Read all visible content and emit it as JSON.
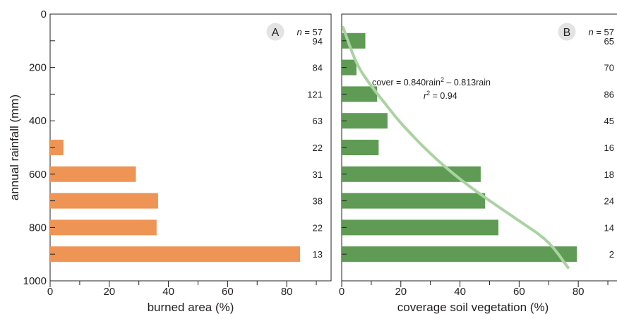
{
  "colors": {
    "left_bar": "#ee9455",
    "right_bar": "#5f9b55",
    "fit_curve": "#a9d3a0",
    "axis": "#231f20",
    "badge": "#e3e3e3"
  },
  "shared_y": {
    "label": "annual rainfall (mm)",
    "ticks": [
      0,
      200,
      400,
      600,
      800,
      1000
    ],
    "range": [
      0,
      1000
    ]
  },
  "chart_data": [
    {
      "type": "bar",
      "orientation": "horizontal",
      "panel": "A",
      "categories_mm": [
        100,
        200,
        300,
        400,
        500,
        600,
        700,
        800,
        900
      ],
      "values": [
        0,
        0,
        0,
        0,
        4.5,
        29,
        36.5,
        36,
        84.5
      ],
      "n_header": "n = 57",
      "n_values": [
        "94",
        "84",
        "121",
        "63",
        "22",
        "31",
        "38",
        "22",
        "13"
      ],
      "xlabel": "burned area (%)",
      "ylabel": "annual rainfall (mm)",
      "xlim": [
        0,
        95
      ],
      "ylim": [
        0,
        1000
      ],
      "x_ticks": [
        0,
        20,
        40,
        60,
        80
      ],
      "y_ticks": [
        0,
        200,
        400,
        600,
        800,
        1000
      ],
      "y_inverted": true
    },
    {
      "type": "bar",
      "orientation": "horizontal",
      "panel": "B",
      "categories_mm": [
        100,
        200,
        300,
        400,
        500,
        600,
        700,
        800,
        900
      ],
      "values": [
        8,
        5,
        12,
        15.5,
        12.5,
        47,
        48.5,
        53,
        79.5
      ],
      "n_header": "n = 57",
      "n_values": [
        "65",
        "70",
        "86",
        "45",
        "16",
        "18",
        "24",
        "14",
        "2"
      ],
      "xlabel": "coverage soil vegetation (%)",
      "xlim": [
        0,
        95
      ],
      "ylim": [
        0,
        1000
      ],
      "x_ticks": [
        0,
        20,
        40,
        60,
        80
      ],
      "y_inverted": true,
      "fit": {
        "equation_prefix": "cover = 0.840rain",
        "equation_sup": "2",
        "equation_suffix": " – 0.813rain",
        "r2_label": "r",
        "r2_sup": "2",
        "r2_value": " = 0.94",
        "points": [
          [
            0.5,
            50
          ],
          [
            5,
            190
          ],
          [
            10,
            270
          ],
          [
            15,
            340
          ],
          [
            20,
            410
          ],
          [
            30,
            525
          ],
          [
            40,
            620
          ],
          [
            50,
            700
          ],
          [
            60,
            775
          ],
          [
            70,
            850
          ],
          [
            76.5,
            950
          ]
        ]
      }
    }
  ]
}
